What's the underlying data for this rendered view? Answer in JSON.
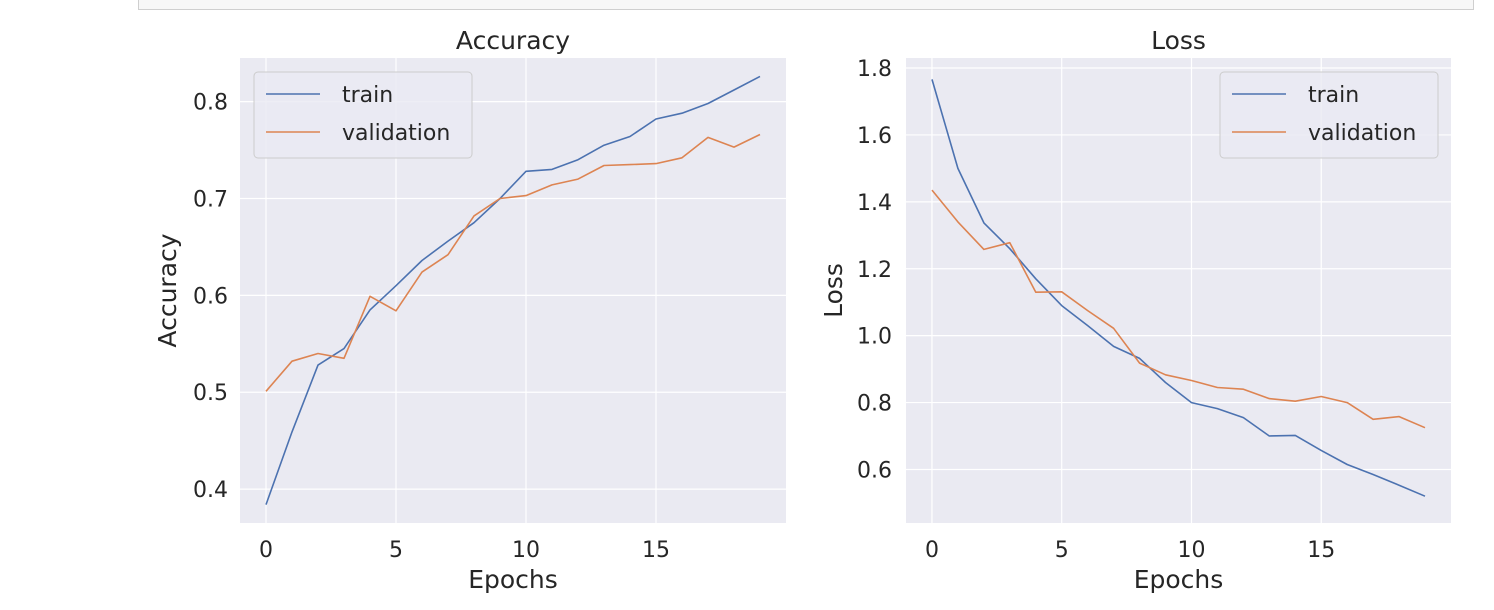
{
  "chart_data": [
    {
      "type": "line",
      "title": "Accuracy",
      "xlabel": "Epochs",
      "ylabel": "Accuracy",
      "xlim": [
        -1,
        20
      ],
      "ylim": [
        0.365,
        0.845
      ],
      "xticks": [
        0,
        5,
        10,
        15
      ],
      "yticks": [
        0.4,
        0.5,
        0.6,
        0.7,
        0.8
      ],
      "grid": true,
      "legend": "upper-left",
      "x": [
        0,
        1,
        2,
        3,
        4,
        5,
        6,
        7,
        8,
        9,
        10,
        11,
        12,
        13,
        14,
        15,
        16,
        17,
        18,
        19
      ],
      "series": [
        {
          "name": "train",
          "color": "#4c72b0",
          "values": [
            0.384,
            0.459,
            0.528,
            0.545,
            0.585,
            0.61,
            0.636,
            0.656,
            0.675,
            0.7,
            0.728,
            0.73,
            0.74,
            0.755,
            0.764,
            0.782,
            0.788,
            0.798,
            0.812,
            0.826
          ]
        },
        {
          "name": "validation",
          "color": "#dd8452",
          "values": [
            0.501,
            0.532,
            0.54,
            0.535,
            0.599,
            0.584,
            0.624,
            0.642,
            0.682,
            0.7,
            0.703,
            0.714,
            0.72,
            0.734,
            0.735,
            0.736,
            0.742,
            0.763,
            0.753,
            0.766
          ]
        }
      ]
    },
    {
      "type": "line",
      "title": "Loss",
      "xlabel": "Epochs",
      "ylabel": "Loss",
      "xlim": [
        -1,
        20
      ],
      "ylim": [
        0.44,
        1.83
      ],
      "xticks": [
        0,
        5,
        10,
        15
      ],
      "yticks": [
        0.6,
        0.8,
        1.0,
        1.2,
        1.4,
        1.6,
        1.8
      ],
      "grid": true,
      "legend": "upper-right",
      "x": [
        0,
        1,
        2,
        3,
        4,
        5,
        6,
        7,
        8,
        9,
        10,
        11,
        12,
        13,
        14,
        15,
        16,
        17,
        18,
        19
      ],
      "series": [
        {
          "name": "train",
          "color": "#4c72b0",
          "values": [
            1.766,
            1.5,
            1.337,
            1.26,
            1.17,
            1.09,
            1.03,
            0.968,
            0.932,
            0.86,
            0.8,
            0.782,
            0.755,
            0.7,
            0.702,
            0.657,
            0.615,
            0.585,
            0.553,
            0.52
          ]
        },
        {
          "name": "validation",
          "color": "#dd8452",
          "values": [
            1.435,
            1.34,
            1.258,
            1.278,
            1.13,
            1.131,
            1.075,
            1.022,
            0.918,
            0.883,
            0.866,
            0.845,
            0.84,
            0.812,
            0.804,
            0.818,
            0.8,
            0.75,
            0.758,
            0.725
          ]
        }
      ]
    }
  ]
}
